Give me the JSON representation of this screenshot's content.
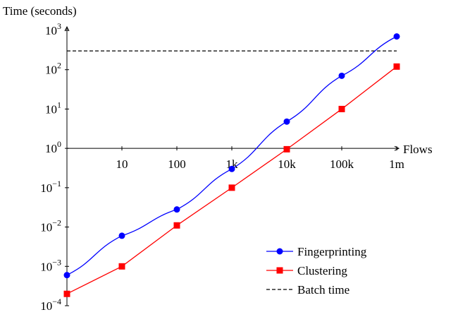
{
  "chart_data": {
    "type": "line",
    "ylabel": "Time (seconds)",
    "xlabel": "Flows",
    "x_scale": "log",
    "y_scale": "log",
    "x_ticks": [
      {
        "value": 10,
        "label": "10"
      },
      {
        "value": 100,
        "label": "100"
      },
      {
        "value": 1000,
        "label": "1k"
      },
      {
        "value": 10000,
        "label": "10k"
      },
      {
        "value": 100000,
        "label": "100k"
      },
      {
        "value": 1000000,
        "label": "1m"
      }
    ],
    "y_ticks": [
      {
        "value": 0.0001,
        "base": "10",
        "exp": "−4"
      },
      {
        "value": 0.001,
        "base": "10",
        "exp": "−3"
      },
      {
        "value": 0.01,
        "base": "10",
        "exp": "−2"
      },
      {
        "value": 0.1,
        "base": "10",
        "exp": "−1"
      },
      {
        "value": 1,
        "base": "10",
        "exp": "0"
      },
      {
        "value": 10,
        "base": "10",
        "exp": "1"
      },
      {
        "value": 100,
        "base": "10",
        "exp": "2"
      },
      {
        "value": 1000,
        "base": "10",
        "exp": "3"
      }
    ],
    "xlim": [
      1,
      1000000
    ],
    "ylim": [
      0.0001,
      1000
    ],
    "grid": false,
    "legend_position": "bottom-right",
    "series": [
      {
        "name": "Fingerprinting",
        "color": "#0000ff",
        "marker": "circle",
        "x": [
          1,
          10,
          100,
          1000,
          10000,
          100000,
          1000000
        ],
        "y": [
          0.0006,
          0.006,
          0.028,
          0.3,
          4.8,
          70,
          700
        ]
      },
      {
        "name": "Clustering",
        "color": "#ff0000",
        "marker": "square",
        "x": [
          1,
          10,
          100,
          1000,
          10000,
          100000,
          1000000
        ],
        "y": [
          0.0002,
          0.001,
          0.011,
          0.1,
          0.95,
          10,
          120
        ]
      }
    ],
    "reference_lines": [
      {
        "name": "Batch time",
        "y": 300,
        "style": "dashed",
        "color": "#000000"
      }
    ]
  }
}
